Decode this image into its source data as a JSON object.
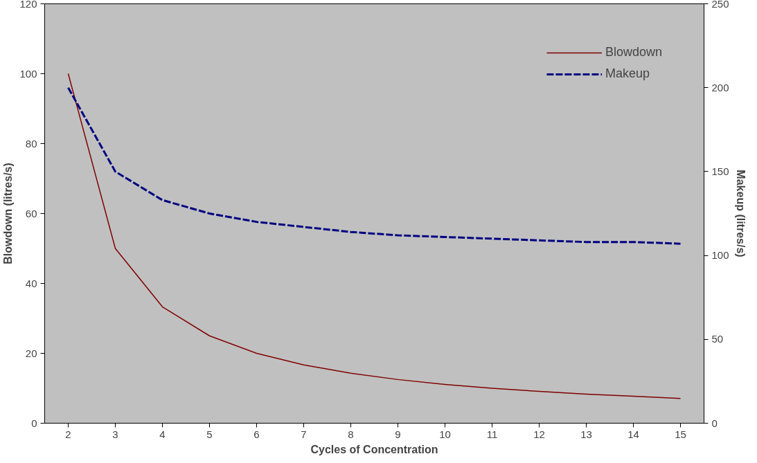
{
  "chart_data": {
    "type": "line",
    "xlabel": "Cycles of Concentration",
    "ylabel": "Blowdown (litres/s)",
    "y2label": "Makeup (litres/s)",
    "categories": [
      "2",
      "3",
      "4",
      "5",
      "6",
      "7",
      "8",
      "9",
      "10",
      "11",
      "12",
      "13",
      "14",
      "15"
    ],
    "ylim": [
      0,
      120
    ],
    "yticks": [
      0,
      20,
      40,
      60,
      80,
      100,
      120
    ],
    "y2lim": [
      0,
      250
    ],
    "y2ticks": [
      0,
      50,
      100,
      150,
      200,
      250
    ],
    "grid": false,
    "legend": "top right",
    "marker": "none",
    "series": [
      {
        "name": "Blowdown",
        "color": "#800000",
        "line_style": "solid",
        "values": [
          100,
          50,
          33.3,
          25,
          20,
          16.7,
          14.3,
          12.5,
          11.1,
          10,
          9.1,
          8.3,
          7.7,
          7.1
        ]
      },
      {
        "name": "Makeup",
        "color": "#000080",
        "line_style": "dashed",
        "axis": "y2",
        "values": [
          200,
          150,
          133,
          125,
          120,
          117,
          114,
          112,
          111,
          110,
          109,
          108,
          108,
          107
        ]
      }
    ]
  }
}
